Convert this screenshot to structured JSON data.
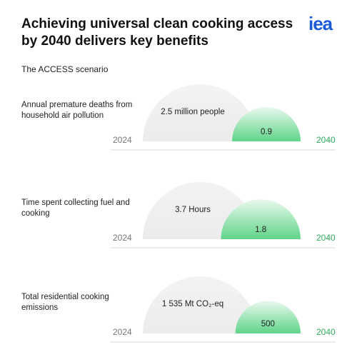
{
  "header": {
    "title": "Achieving universal clean cooking access by 2040 delivers key benefits",
    "logo": "iea",
    "subtitle": "The ACCESS scenario"
  },
  "panels": [
    {
      "label": "Annual premature deaths from household air pollution",
      "start_year": "2024",
      "end_year": "2040",
      "values": [
        2.5,
        0.9
      ],
      "value_labels": [
        "2.5 million people",
        "0.9"
      ]
    },
    {
      "label": "Time spent collecting fuel and cooking",
      "start_year": "2024",
      "end_year": "2040",
      "values": [
        3.7,
        1.8
      ],
      "value_labels": [
        "3.7 Hours",
        "1.8"
      ]
    },
    {
      "label": "Total residential cooking emissions",
      "start_year": "2024",
      "end_year": "2040",
      "values": [
        1535,
        500
      ],
      "value_labels": [
        "1 535 Mt CO₂-eq",
        "500"
      ]
    }
  ]
}
